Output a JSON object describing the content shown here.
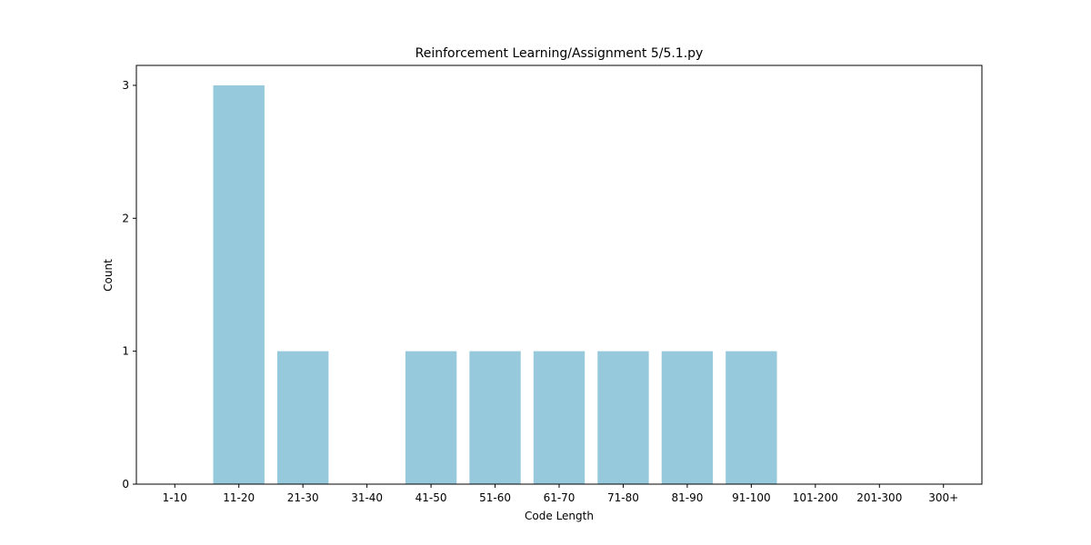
{
  "chart_data": {
    "type": "bar",
    "title": "Reinforcement Learning/Assignment 5/5.1.py",
    "xlabel": "Code Length",
    "ylabel": "Count",
    "categories": [
      "1-10",
      "11-20",
      "21-30",
      "31-40",
      "41-50",
      "51-60",
      "61-70",
      "71-80",
      "81-90",
      "91-100",
      "101-200",
      "201-300",
      "300+"
    ],
    "values": [
      0,
      3,
      1,
      0,
      1,
      1,
      1,
      1,
      1,
      1,
      0,
      0,
      0
    ],
    "ylim": [
      0,
      3.15
    ],
    "yticks": [
      0,
      1,
      2,
      3
    ],
    "bar_color": "#96c9dc",
    "grid": false,
    "legend": "none"
  }
}
